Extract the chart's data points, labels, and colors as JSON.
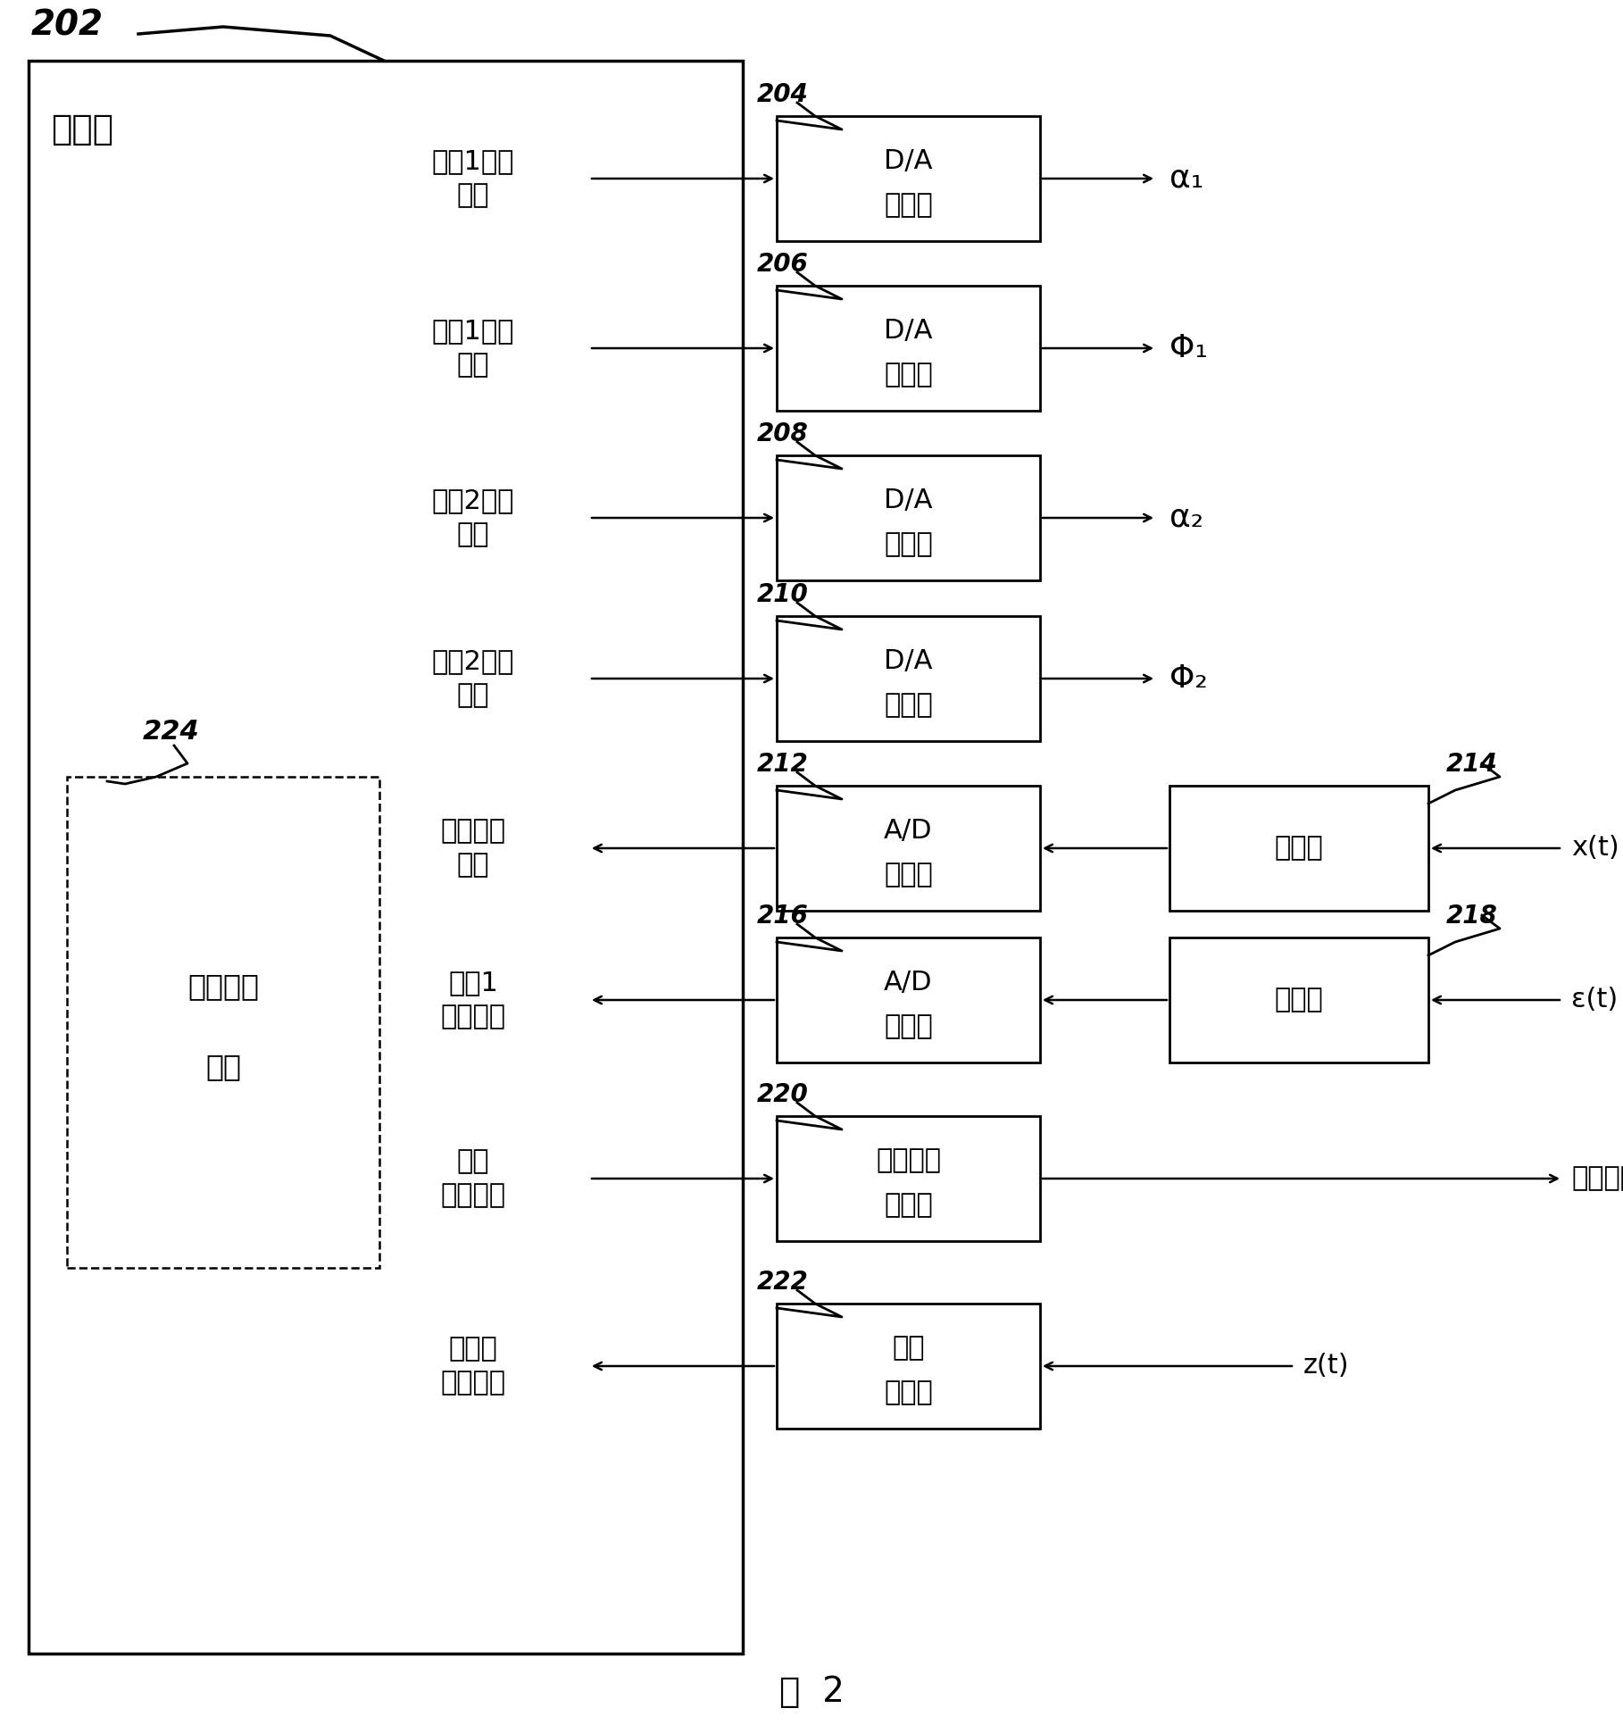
{
  "title": "图  2",
  "fig_label": "202",
  "processor_label": "处理器",
  "preset_label": "224",
  "preset_box_line1": "预先对准",
  "preset_box_line2": "设定",
  "left_labels": [
    "回路1增益\n调整",
    "回路1相位\n调整",
    "回路2增益\n调整",
    "回路2相位\n调整",
    "输入测试\n数据",
    "回路1\n测试数据",
    "导频\n信号数据",
    "接收的\n导频数据"
  ],
  "da_boxes": [
    {
      "id": "204",
      "line1": "D/A",
      "line2": "转换器",
      "output": "α₁"
    },
    {
      "id": "206",
      "line1": "D/A",
      "line2": "转换器",
      "output": "Φ₁"
    },
    {
      "id": "208",
      "line1": "D/A",
      "line2": "转换器",
      "output": "α₂"
    },
    {
      "id": "210",
      "line1": "D/A",
      "line2": "转换器",
      "output": "Φ₂"
    }
  ],
  "ad_boxes": [
    {
      "id": "212",
      "line1": "A/D",
      "line2": "转换器",
      "det_id": "214",
      "det_label": "检测器",
      "input": "x(t)"
    },
    {
      "id": "216",
      "line1": "A/D",
      "line2": "转换器",
      "det_id": "218",
      "det_label": "检测器",
      "input": "ε(t)"
    }
  ],
  "pilot_boxes": [
    {
      "id": "220",
      "line1": "导频信号",
      "line2": "发生器",
      "output": "导频信号",
      "dir": "out"
    },
    {
      "id": "222",
      "line1": "导频",
      "line2": "接收器",
      "input": "z(t)",
      "dir": "in"
    }
  ]
}
